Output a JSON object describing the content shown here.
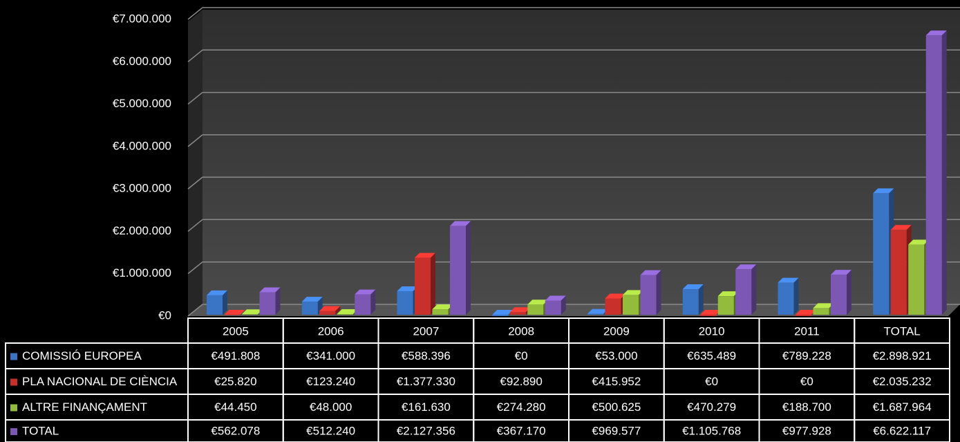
{
  "chart_data": {
    "type": "bar",
    "categories": [
      "2005",
      "2006",
      "2007",
      "2008",
      "2009",
      "2010",
      "2011",
      "TOTAL"
    ],
    "series": [
      {
        "name": "COMISSIÓ EUROPEA",
        "color": "#3a74c4",
        "values": [
          491808,
          341000,
          588396,
          0,
          53000,
          635489,
          789228,
          2898921
        ],
        "value_labels": [
          "€491.808",
          "€341.000",
          "€588.396",
          "€0",
          "€53.000",
          "€635.489",
          "€789.228",
          "€2.898.921"
        ]
      },
      {
        "name": "PLA NACIONAL DE CIÈNCIA",
        "color": "#c8302c",
        "values": [
          25820,
          123240,
          1377330,
          92890,
          415952,
          0,
          0,
          2035232
        ],
        "value_labels": [
          "€25.820",
          "€123.240",
          "€1.377.330",
          "€92.890",
          "€415.952",
          "€0",
          "€0",
          "€2.035.232"
        ]
      },
      {
        "name": "ALTRE FINANÇAMENT",
        "color": "#94bc3c",
        "values": [
          44450,
          48000,
          161630,
          274280,
          500625,
          470279,
          188700,
          1687964
        ],
        "value_labels": [
          "€44.450",
          "€48.000",
          "€161.630",
          "€274.280",
          "€500.625",
          "€470.279",
          "€188.700",
          "€1.687.964"
        ]
      },
      {
        "name": "TOTAL",
        "color": "#7c58b4",
        "values": [
          562078,
          512240,
          2127356,
          367170,
          969577,
          1105768,
          977928,
          6622117
        ],
        "value_labels": [
          "€562.078",
          "€512.240",
          "€2.127.356",
          "€367.170",
          "€969.577",
          "€1.105.768",
          "€977.928",
          "€6.622.117"
        ]
      }
    ],
    "ylim": [
      0,
      7000000
    ],
    "yticks": [
      {
        "value": 0,
        "label": "€0"
      },
      {
        "value": 1000000,
        "label": "€1.000.000"
      },
      {
        "value": 2000000,
        "label": "€2.000.000"
      },
      {
        "value": 3000000,
        "label": "€3.000.000"
      },
      {
        "value": 4000000,
        "label": "€4.000.000"
      },
      {
        "value": 5000000,
        "label": "€5.000.000"
      },
      {
        "value": 6000000,
        "label": "€6.000.000"
      },
      {
        "value": 7000000,
        "label": "€7.000.000"
      }
    ],
    "grid": true
  }
}
